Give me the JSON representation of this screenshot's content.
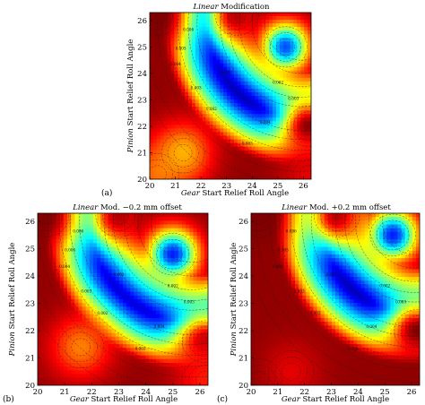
{
  "chart_data": [
    {
      "type": "heatmap",
      "id": "a",
      "panel_letter": "(a)",
      "title_italic": "Linear",
      "title_rest": " Modification",
      "xlabel_italic": "Gear",
      "xlabel_rest": " Start Relief Roll Angle",
      "ylabel_italic": "Pinion",
      "ylabel_rest": " Start Relief Roll Angle",
      "xlim": [
        20,
        26.3
      ],
      "ylim": [
        20,
        26.3
      ],
      "xticks": [
        20,
        21,
        22,
        23,
        24,
        25,
        26
      ],
      "yticks": [
        20,
        21,
        22,
        23,
        24,
        25,
        26
      ],
      "colormap": "jet",
      "contour_labels": [
        "0.006",
        "0.005",
        "0.004",
        "0.003",
        "0.002",
        "0.004",
        "0.003",
        "0.002",
        "0.002",
        "0.003"
      ],
      "features": {
        "ring_centre": [
          25.9,
          25.9
        ],
        "ring_radius": 3.6,
        "ring_low": 0.05,
        "peaks": [
          {
            "x": 20.3,
            "y": 20.2,
            "v": 0.78
          },
          {
            "x": 21.3,
            "y": 21.0,
            "v": 0.7
          },
          {
            "x": 20.3,
            "y": 26.2,
            "v": 1.0
          },
          {
            "x": 23.4,
            "y": 26.2,
            "v": 0.95
          },
          {
            "x": 26.2,
            "y": 22.0,
            "v": 1.0
          },
          {
            "x": 26.2,
            "y": 20.2,
            "v": 0.9
          }
        ],
        "lows": [
          {
            "x": 25.3,
            "y": 25.0,
            "v": 0.2
          }
        ]
      }
    },
    {
      "type": "heatmap",
      "id": "b",
      "panel_letter": "(b)",
      "title_italic": "Linear",
      "title_rest": " Mod. −0.2 mm offset",
      "xlabel_italic": "Gear",
      "xlabel_rest": " Start Relief Roll Angle",
      "ylabel_italic": "Pinion",
      "ylabel_rest": " Start Relief Roll Angle",
      "xlim": [
        20,
        26.3
      ],
      "ylim": [
        20,
        26.3
      ],
      "xticks": [
        20,
        21,
        22,
        23,
        24,
        25,
        26
      ],
      "yticks": [
        20,
        21,
        22,
        23,
        24,
        25,
        26
      ],
      "colormap": "jet",
      "contour_labels": [
        "0.006",
        "0.005",
        "0.004",
        "0.003",
        "0.002",
        "0.004",
        "0.003",
        "0.002",
        "0.002",
        "0.003"
      ],
      "features": {
        "ring_centre": [
          25.7,
          26.0
        ],
        "ring_radius": 3.7,
        "ring_low": 0.08,
        "peaks": [
          {
            "x": 21.6,
            "y": 21.4,
            "v": 0.75
          },
          {
            "x": 20.3,
            "y": 26.2,
            "v": 1.0
          },
          {
            "x": 23.0,
            "y": 26.2,
            "v": 0.95
          },
          {
            "x": 26.2,
            "y": 21.6,
            "v": 0.95
          },
          {
            "x": 26.2,
            "y": 20.2,
            "v": 0.85
          }
        ],
        "lows": [
          {
            "x": 25.0,
            "y": 24.8,
            "v": 0.15
          }
        ]
      }
    },
    {
      "type": "heatmap",
      "id": "c",
      "panel_letter": "(c)",
      "title_italic": "Linear",
      "title_rest": " Mod. +0.2 mm offset",
      "xlabel_italic": "Gear",
      "xlabel_rest": " Start Relief Roll Angle",
      "ylabel_italic": "Pinion",
      "ylabel_rest": " Start Relief Roll Angle",
      "xlim": [
        20,
        26.3
      ],
      "ylim": [
        20,
        26.3
      ],
      "xticks": [
        20,
        21,
        22,
        23,
        24,
        25,
        26
      ],
      "yticks": [
        20,
        21,
        22,
        23,
        24,
        25,
        26
      ],
      "colormap": "jet",
      "contour_labels": [
        "0.006",
        "0.005",
        "0.004",
        "0.003",
        "0.002",
        "0.004",
        "0.003",
        "0.002",
        "0.002",
        "0.003"
      ],
      "features": {
        "ring_centre": [
          26.1,
          26.0
        ],
        "ring_radius": 3.4,
        "ring_low": 0.05,
        "peaks": [
          {
            "x": 20.3,
            "y": 20.2,
            "v": 1.0
          },
          {
            "x": 21.5,
            "y": 20.5,
            "v": 0.9
          },
          {
            "x": 20.3,
            "y": 26.2,
            "v": 1.0
          },
          {
            "x": 23.2,
            "y": 26.2,
            "v": 0.95
          },
          {
            "x": 26.2,
            "y": 22.0,
            "v": 1.0
          }
        ],
        "lows": [
          {
            "x": 25.3,
            "y": 25.5,
            "v": 0.15
          }
        ]
      }
    }
  ]
}
